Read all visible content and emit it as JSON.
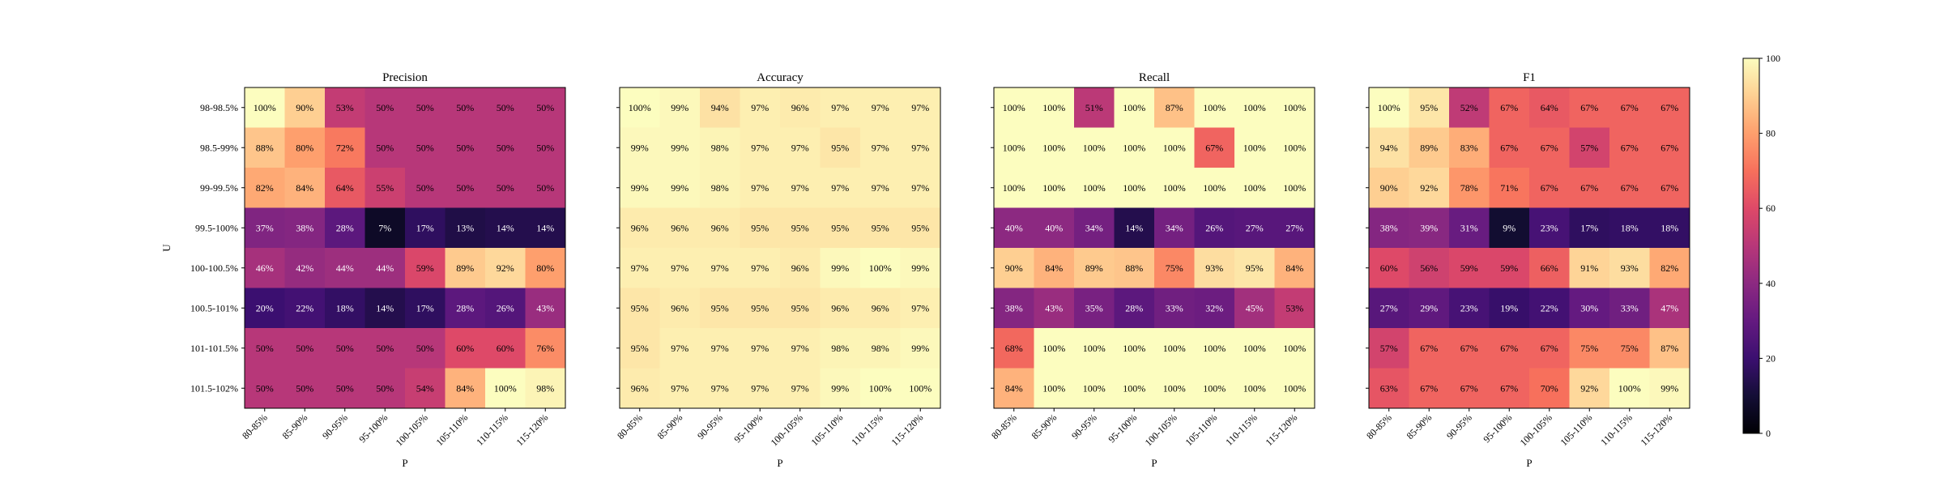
{
  "chart_data": {
    "type": "heatmap",
    "colormap": "magma",
    "colorbar": {
      "range": [
        0,
        100
      ],
      "ticks": [
        "0",
        "20",
        "40",
        "60",
        "80",
        "100"
      ]
    },
    "y_labels": [
      "98-98.5%",
      "98.5-99%",
      "99-99.5%",
      "99.5-100%",
      "100-100.5%",
      "100.5-101%",
      "101-101.5%",
      "101.5-102%"
    ],
    "x_labels": [
      "80-85%",
      "85-90%",
      "90-95%",
      "95-100%",
      "100-105%",
      "105-110%",
      "110-115%",
      "115-120%"
    ],
    "panels": [
      {
        "title": "Precision",
        "xlabel": "P",
        "ylabel": "U",
        "values": [
          [
            100,
            90,
            53,
            50,
            50,
            50,
            50,
            50
          ],
          [
            88,
            80,
            72,
            50,
            50,
            50,
            50,
            50
          ],
          [
            82,
            84,
            64,
            55,
            50,
            50,
            50,
            50
          ],
          [
            37,
            38,
            28,
            7,
            17,
            13,
            14,
            14
          ],
          [
            46,
            42,
            44,
            44,
            59,
            89,
            92,
            80
          ],
          [
            20,
            22,
            18,
            14,
            17,
            28,
            26,
            43
          ],
          [
            50,
            50,
            50,
            50,
            50,
            60,
            60,
            76
          ],
          [
            50,
            50,
            50,
            50,
            54,
            84,
            100,
            98
          ]
        ]
      },
      {
        "title": "Accuracy",
        "xlabel": "P",
        "ylabel": "",
        "values": [
          [
            100,
            99,
            94,
            97,
            96,
            97,
            97,
            97
          ],
          [
            99,
            99,
            98,
            97,
            97,
            95,
            97,
            97
          ],
          [
            99,
            99,
            98,
            97,
            97,
            97,
            97,
            97
          ],
          [
            96,
            96,
            96,
            95,
            95,
            95,
            95,
            95
          ],
          [
            97,
            97,
            97,
            97,
            96,
            99,
            100,
            99
          ],
          [
            95,
            96,
            95,
            95,
            95,
            96,
            96,
            97
          ],
          [
            95,
            97,
            97,
            97,
            97,
            98,
            98,
            99
          ],
          [
            96,
            97,
            97,
            97,
            97,
            99,
            100,
            100
          ]
        ]
      },
      {
        "title": "Recall",
        "xlabel": "P",
        "ylabel": "",
        "values": [
          [
            100,
            100,
            51,
            100,
            87,
            100,
            100,
            100
          ],
          [
            100,
            100,
            100,
            100,
            100,
            67,
            100,
            100
          ],
          [
            100,
            100,
            100,
            100,
            100,
            100,
            100,
            100
          ],
          [
            40,
            40,
            34,
            14,
            34,
            26,
            27,
            27
          ],
          [
            90,
            84,
            89,
            88,
            75,
            93,
            95,
            84
          ],
          [
            38,
            43,
            35,
            28,
            33,
            32,
            45,
            53
          ],
          [
            68,
            100,
            100,
            100,
            100,
            100,
            100,
            100
          ],
          [
            84,
            100,
            100,
            100,
            100,
            100,
            100,
            100
          ]
        ]
      },
      {
        "title": "F1",
        "xlabel": "P",
        "ylabel": "",
        "values": [
          [
            100,
            95,
            52,
            67,
            64,
            67,
            67,
            67
          ],
          [
            94,
            89,
            83,
            67,
            67,
            57,
            67,
            67
          ],
          [
            90,
            92,
            78,
            71,
            67,
            67,
            67,
            67
          ],
          [
            38,
            39,
            31,
            9,
            23,
            17,
            18,
            18
          ],
          [
            60,
            56,
            59,
            59,
            66,
            91,
            93,
            82
          ],
          [
            27,
            29,
            23,
            19,
            22,
            30,
            33,
            47
          ],
          [
            57,
            67,
            67,
            67,
            67,
            75,
            75,
            87
          ],
          [
            63,
            67,
            67,
            67,
            70,
            92,
            100,
            99
          ]
        ]
      }
    ]
  }
}
